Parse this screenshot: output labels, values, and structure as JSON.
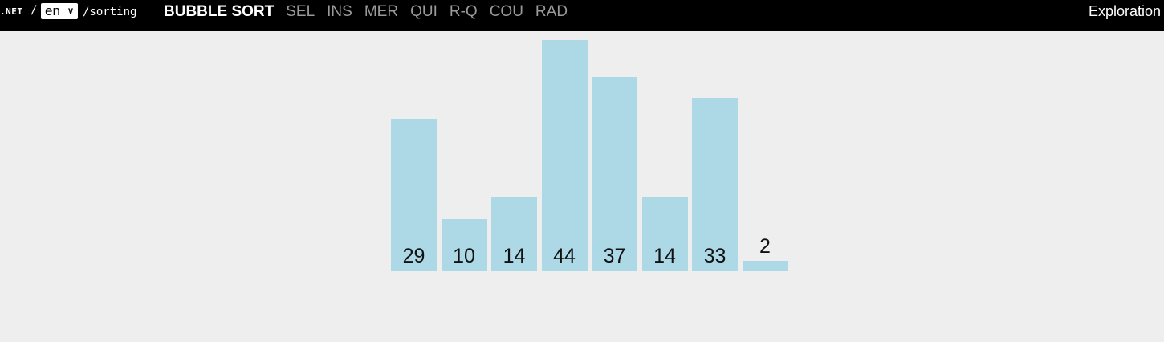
{
  "header": {
    "site": ".NET",
    "separator": "/",
    "language": "en",
    "path": "/sorting",
    "nav": [
      {
        "label": "BUBBLE SORT",
        "active": true
      },
      {
        "label": "SEL",
        "active": false
      },
      {
        "label": "INS",
        "active": false
      },
      {
        "label": "MER",
        "active": false
      },
      {
        "label": "QUI",
        "active": false
      },
      {
        "label": "R-Q",
        "active": false
      },
      {
        "label": "COU",
        "active": false
      },
      {
        "label": "RAD",
        "active": false
      }
    ],
    "right_link": "Exploration"
  },
  "array": {
    "values": [
      29,
      10,
      14,
      44,
      37,
      14,
      33,
      2
    ],
    "bar_color": "#add8e6",
    "max_value": 44
  }
}
